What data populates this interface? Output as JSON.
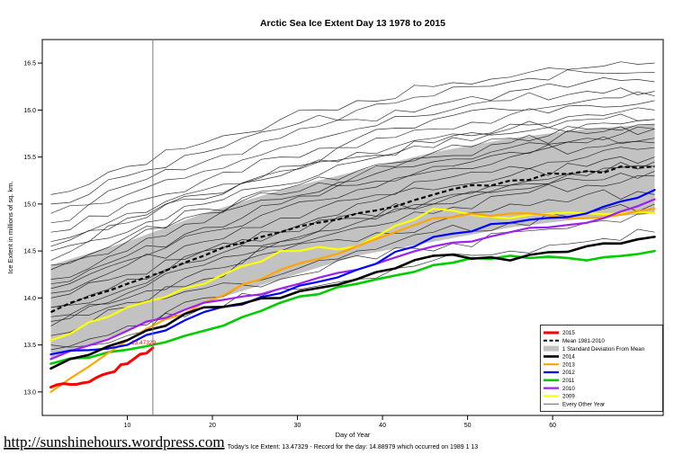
{
  "page": {
    "url_text": "http://sunshinehours.wordpress.com"
  },
  "chart_data": {
    "type": "line",
    "title": "Arctic Sea Ice Extent Day 13 1978 to 2015",
    "xlabel": "Day of Year",
    "ylabel": "Ice Extent in millions of sq. km.",
    "caption": "Today's Ice Extent: 13.47329  - Record for the day: 14.88979 which occurred on 1989 1 13",
    "annotation": {
      "text": "13.47329",
      "day": 13,
      "value": 13.47329,
      "color": "#ff0000"
    },
    "xlim": [
      0,
      73
    ],
    "ylim": [
      12.75,
      16.75
    ],
    "x_ticks": [
      10,
      20,
      30,
      40,
      50,
      60
    ],
    "y_ticks": [
      13.0,
      13.5,
      14.0,
      14.5,
      15.0,
      15.5,
      16.0,
      16.5
    ],
    "vline_day": 13,
    "grid": false,
    "legend_position": "bottom-right-inside",
    "x_days": [
      1,
      10,
      19,
      28,
      37,
      46,
      55,
      64,
      72
    ],
    "band": {
      "label": "1 Standard Deviation From Mean",
      "color": "#c2c2c2",
      "upper": [
        14.35,
        14.6,
        14.9,
        15.15,
        15.35,
        15.55,
        15.7,
        15.8,
        15.85
      ],
      "lower": [
        13.35,
        13.65,
        13.95,
        14.2,
        14.45,
        14.6,
        14.75,
        14.85,
        14.9
      ]
    },
    "mean": {
      "label": "Mean 1981-2010",
      "color": "#000000",
      "values": [
        13.85,
        14.15,
        14.45,
        14.7,
        14.9,
        15.1,
        15.25,
        15.35,
        15.4
      ]
    },
    "series": [
      {
        "name": "2009",
        "color": "#ffff00",
        "width": 2.2,
        "values": [
          13.55,
          13.9,
          14.15,
          14.5,
          14.55,
          14.95,
          14.85,
          14.9,
          14.9
        ]
      },
      {
        "name": "2011",
        "color": "#00cc00",
        "width": 2.6,
        "values": [
          13.3,
          13.45,
          13.65,
          13.95,
          14.15,
          14.35,
          14.45,
          14.4,
          14.5
        ]
      },
      {
        "name": "2013",
        "color": "#ffa500",
        "width": 2.2,
        "values": [
          13.0,
          13.55,
          13.95,
          14.3,
          14.55,
          14.85,
          14.9,
          14.85,
          14.95
        ]
      },
      {
        "name": "2010",
        "color": "#a020f0",
        "width": 2.2,
        "values": [
          13.35,
          13.65,
          13.95,
          14.1,
          14.3,
          14.55,
          14.7,
          14.8,
          15.05
        ]
      },
      {
        "name": "2012",
        "color": "#0000ff",
        "width": 2.2,
        "values": [
          13.4,
          13.5,
          13.85,
          14.05,
          14.3,
          14.65,
          14.8,
          14.9,
          15.15
        ]
      },
      {
        "name": "2014",
        "color": "#000000",
        "width": 2.6,
        "values": [
          13.25,
          13.55,
          13.9,
          14.0,
          14.2,
          14.45,
          14.4,
          14.55,
          14.65
        ]
      },
      {
        "name": "2015",
        "color": "#ff0000",
        "width": 3,
        "x": [
          1,
          4,
          7,
          10,
          13
        ],
        "values": [
          13.05,
          13.08,
          13.18,
          13.3,
          13.47
        ]
      }
    ],
    "background": {
      "label": "Every Other Year",
      "color": "#111111",
      "lines": [
        [
          13.45,
          13.7,
          13.9,
          14.1,
          14.2,
          14.4,
          14.5,
          14.6,
          14.7
        ],
        [
          13.5,
          13.6,
          14.0,
          14.2,
          14.45,
          14.5,
          14.7,
          14.8,
          14.9
        ],
        [
          13.6,
          13.9,
          14.1,
          14.25,
          14.5,
          14.7,
          14.8,
          14.9,
          15.0
        ],
        [
          13.7,
          13.95,
          14.2,
          14.5,
          14.6,
          14.8,
          15.0,
          15.1,
          15.1
        ],
        [
          13.8,
          14.0,
          14.3,
          14.55,
          14.75,
          14.9,
          15.1,
          15.2,
          15.3
        ],
        [
          13.9,
          14.2,
          14.4,
          14.6,
          14.9,
          15.0,
          15.2,
          15.3,
          15.4
        ],
        [
          14.0,
          14.25,
          14.5,
          14.7,
          15.0,
          15.15,
          15.3,
          15.4,
          15.5
        ],
        [
          14.05,
          14.35,
          14.6,
          14.85,
          15.05,
          15.25,
          15.4,
          15.5,
          15.6
        ],
        [
          14.1,
          14.4,
          14.7,
          14.95,
          15.15,
          15.35,
          15.5,
          15.65,
          15.7
        ],
        [
          14.2,
          14.5,
          14.8,
          15.05,
          15.25,
          15.45,
          15.6,
          15.7,
          15.8
        ],
        [
          14.3,
          14.6,
          14.9,
          15.15,
          15.35,
          15.55,
          15.7,
          15.8,
          15.85
        ],
        [
          14.4,
          14.7,
          15.0,
          15.2,
          15.45,
          15.6,
          15.8,
          15.9,
          15.9
        ],
        [
          14.5,
          14.8,
          15.1,
          15.3,
          15.55,
          15.7,
          15.85,
          15.95,
          16.0
        ],
        [
          14.6,
          14.9,
          15.15,
          15.4,
          15.6,
          15.8,
          15.95,
          16.05,
          16.1
        ],
        [
          14.7,
          15.0,
          15.25,
          15.5,
          15.7,
          15.9,
          16.0,
          16.1,
          16.15
        ],
        [
          14.8,
          15.1,
          15.35,
          15.6,
          15.8,
          15.95,
          16.1,
          16.2,
          16.2
        ],
        [
          14.9,
          15.2,
          15.45,
          15.7,
          15.9,
          16.05,
          16.2,
          16.3,
          16.3
        ],
        [
          15.0,
          15.3,
          15.55,
          15.8,
          16.0,
          16.15,
          16.3,
          16.4,
          16.4
        ],
        [
          15.1,
          15.4,
          15.65,
          15.9,
          16.1,
          16.25,
          16.35,
          16.45,
          16.5
        ],
        [
          13.9,
          14.1,
          14.5,
          14.7,
          14.85,
          15.05,
          15.2,
          15.35,
          15.45
        ],
        [
          14.15,
          14.45,
          14.75,
          15.0,
          15.2,
          15.4,
          15.55,
          15.6,
          15.65
        ],
        [
          14.55,
          14.85,
          15.05,
          15.35,
          15.5,
          15.65,
          15.75,
          15.85,
          15.9
        ],
        [
          13.75,
          14.05,
          14.35,
          14.6,
          14.8,
          15.0,
          15.15,
          15.25,
          15.35
        ],
        [
          14.35,
          14.65,
          14.95,
          15.1,
          15.3,
          15.5,
          15.65,
          15.75,
          15.8
        ]
      ]
    }
  },
  "legend": {
    "items": [
      {
        "label": "2015",
        "style": "line",
        "color": "#ff0000",
        "lw": 3
      },
      {
        "label": "Mean 1981-2010",
        "style": "dashed",
        "color": "#000000",
        "lw": 2
      },
      {
        "label": "1 Standard Deviation From Mean",
        "style": "band",
        "color": "#c2c2c2",
        "lw": 6
      },
      {
        "label": "2014",
        "style": "line",
        "color": "#000000",
        "lw": 2.6
      },
      {
        "label": "2013",
        "style": "line",
        "color": "#ffa500",
        "lw": 2.2
      },
      {
        "label": "2012",
        "style": "line",
        "color": "#0000ff",
        "lw": 2.2
      },
      {
        "label": "2011",
        "style": "line",
        "color": "#00cc00",
        "lw": 2.6
      },
      {
        "label": "2010",
        "style": "line",
        "color": "#a020f0",
        "lw": 2.2
      },
      {
        "label": "2009",
        "style": "line",
        "color": "#ffff00",
        "lw": 2.2
      },
      {
        "label": "Every Other Year",
        "style": "thin",
        "color": "#000000",
        "lw": 0.7
      }
    ]
  }
}
